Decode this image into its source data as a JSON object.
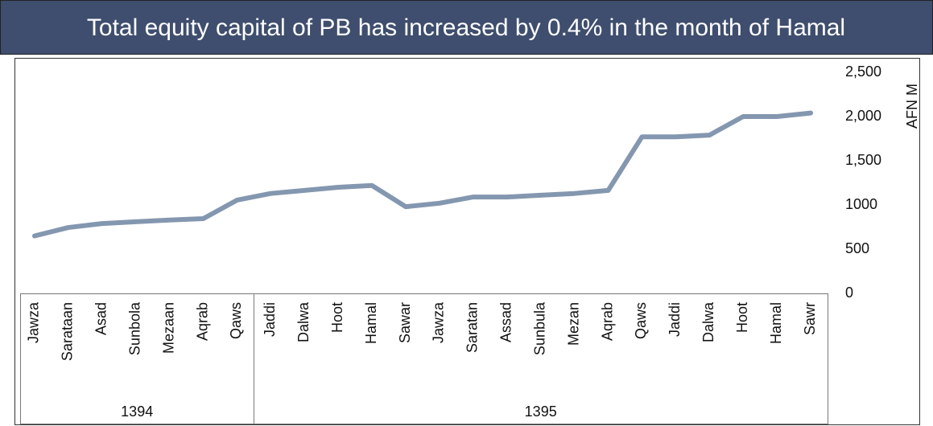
{
  "chart_data": {
    "type": "line",
    "title": "Total equity capital of  PB has increased  by 0.4% in the month of Hamal",
    "y_axis_label": "AFN M",
    "categories": [
      "Jawza",
      "Sarataan",
      "Asad",
      "Sunbola",
      "Mezaan",
      "Aqrab",
      "Qaws",
      "Jaddi",
      "Dalwa",
      "Hoot",
      "Hamal",
      "Sawar",
      "Jawza",
      "Saratan",
      "Assad",
      "Sunbula",
      "Mezan",
      "Aqrab",
      "Qaws",
      "Jaddi",
      "Dalwa",
      "Hoot",
      "Hamal",
      "Sawr"
    ],
    "x_groups": [
      {
        "label": "1394",
        "span": 7
      },
      {
        "label": "1395",
        "span": 17
      }
    ],
    "values": [
      650,
      745,
      790,
      810,
      830,
      845,
      1055,
      1130,
      1165,
      1200,
      1220,
      980,
      1020,
      1090,
      1090,
      1110,
      1130,
      1165,
      1770,
      1770,
      1790,
      2000,
      2000,
      2040
    ],
    "color": "#8497b0",
    "ylim": [
      0,
      2500
    ],
    "yticks": [
      0,
      500,
      1000,
      {
        "value": 1500,
        "label": "1,500"
      },
      {
        "value": 2000,
        "label": "2,000"
      },
      {
        "value": 2500,
        "label": "2,500"
      }
    ],
    "grid": false
  }
}
